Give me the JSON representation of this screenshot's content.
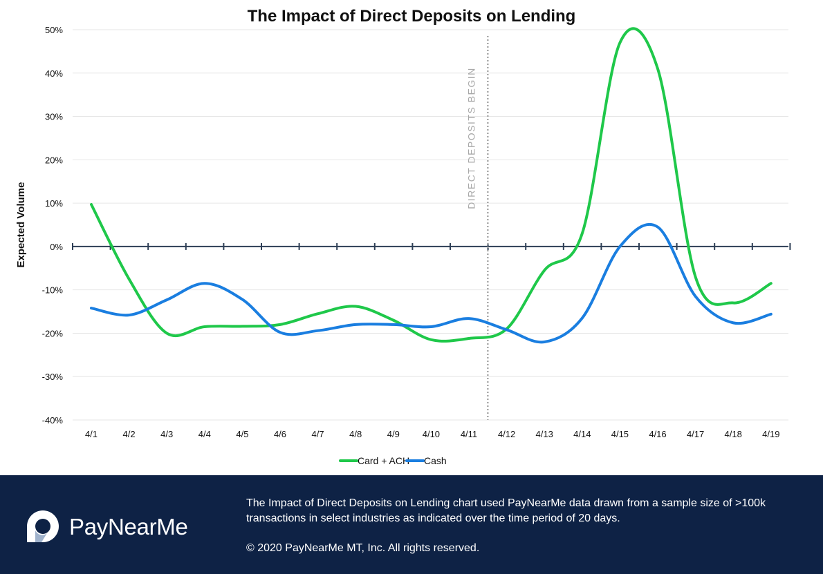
{
  "chart_data": {
    "type": "line",
    "title": "The Impact of Direct Deposits on Lending",
    "ylabel": "Expected Volume",
    "xlabel": "",
    "x": [
      "4/1",
      "4/2",
      "4/3",
      "4/4",
      "4/5",
      "4/6",
      "4/7",
      "4/8",
      "4/9",
      "4/10",
      "4/11",
      "4/12",
      "4/13",
      "4/14",
      "4/15",
      "4/16",
      "4/17",
      "4/18",
      "4/19"
    ],
    "ylim": [
      -40,
      50
    ],
    "yticks": [
      50,
      40,
      30,
      20,
      10,
      0,
      -10,
      -20,
      -30,
      -40
    ],
    "ytick_labels": [
      "50%",
      "40%",
      "30%",
      "20%",
      "10%",
      "0%",
      "-10%",
      "-20%",
      "-30%",
      "-40%"
    ],
    "grid": true,
    "legend_position": "bottom-center",
    "series": [
      {
        "name": "Card + ACH",
        "color": "#1fc84a",
        "values": [
          9.7,
          -7.5,
          -20,
          -18.5,
          -18.4,
          -18,
          -15.5,
          -13.8,
          -17,
          -21.5,
          -21.2,
          -19,
          -5.5,
          3,
          47,
          41,
          -7,
          -13,
          -8.5
        ]
      },
      {
        "name": "Cash",
        "color": "#1a7ee0",
        "values": [
          -14.2,
          -15.8,
          -12.3,
          -8.5,
          -12.2,
          -19.8,
          -19.4,
          -18,
          -18,
          -18.5,
          -16.6,
          -19.2,
          -22,
          -16.5,
          0,
          4.5,
          -11.5,
          -17.6,
          -15.6
        ]
      }
    ],
    "annotation": {
      "text": "DIRECT DEPOSITS BEGIN",
      "x_between": [
        "4/11",
        "4/12"
      ]
    }
  },
  "legend": {
    "card_ach": "Card + ACH",
    "cash": "Cash"
  },
  "footer": {
    "brand": "PayNearMe",
    "description": "The Impact of Direct Deposits on Lending chart used PayNearMe data drawn from a sample size of  >100k transactions in select industries as indicated over the time period of 20 days.",
    "copyright": "© 2020 PayNearMe MT, Inc. All rights reserved.",
    "background": "#0e2245"
  }
}
